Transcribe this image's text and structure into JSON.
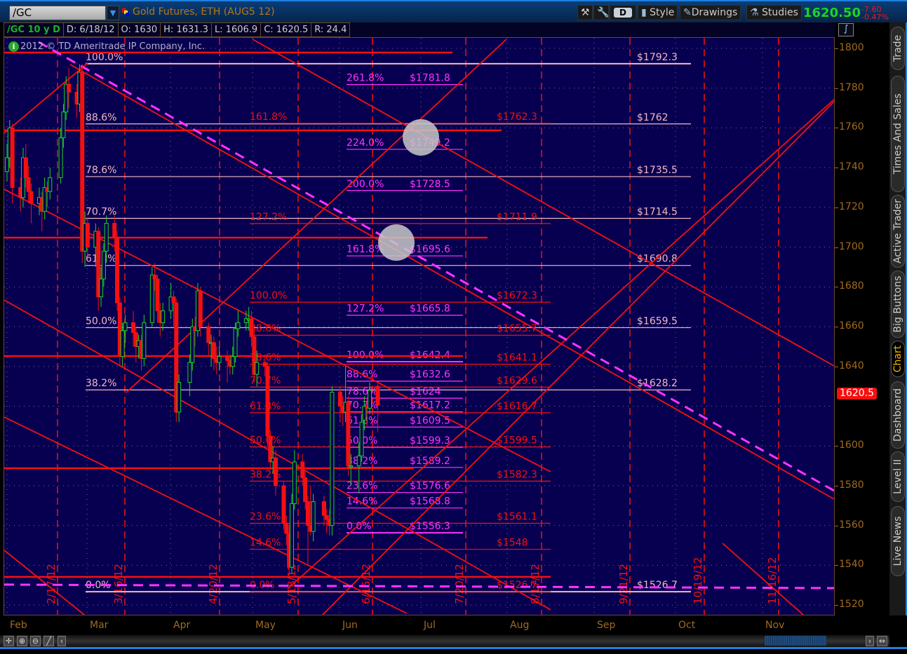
{
  "toolbar": {
    "symbol": "/GC",
    "title": "Gold Futures, ETH (AUG5 12)",
    "aggregation_button": "D",
    "style_label": "Style",
    "drawings_label": "Drawings",
    "studies_label": "Studies",
    "last_price": "1620.50",
    "net_change": "-7.60",
    "pct_change": "-0.47%"
  },
  "infobar": {
    "chart_label": "/GC 10 y D",
    "date": "D: 6/18/12",
    "open": "O: 1630",
    "high": "H: 1631.3",
    "low": "L: 1606.9",
    "close": "C: 1620.5",
    "range": "R: 24.4"
  },
  "copyright": "2012 © TD Ameritrade IP Company, Inc.",
  "side_tabs": [
    {
      "label": "Trade",
      "active": false
    },
    {
      "label": "Times And Sales",
      "active": false
    },
    {
      "label": "Active Trader",
      "active": false
    },
    {
      "label": "Big Buttons",
      "active": false
    },
    {
      "label": "Chart",
      "active": true
    },
    {
      "label": "Dashboard",
      "active": false
    },
    {
      "label": "Level II",
      "active": false
    },
    {
      "label": "Live News",
      "active": false
    }
  ],
  "colors": {
    "up": "#19d61f",
    "down": "#f41010",
    "background": "#070050",
    "fib_a": "#f3b8c4",
    "fib_b": "#f41010",
    "fib_c": "#ff33ff",
    "trendline": "#f41010",
    "dashed_trend": "#ff33ff"
  },
  "chart_data": {
    "type": "candlestick",
    "symbol": "/GC",
    "current_price_badge": "1620.5",
    "y_ticks": [
      "1800",
      "1780",
      "1760",
      "1740",
      "1720",
      "1700",
      "1680",
      "1660",
      "1640",
      "1600",
      "1580",
      "1560",
      "1540",
      "1520"
    ],
    "ylim": [
      1516,
      1808
    ],
    "x_ticks": [
      "Feb",
      "Mar",
      "Apr",
      "May",
      "Jun",
      "Jul",
      "Aug",
      "Sep",
      "Oct",
      "Nov"
    ],
    "time_markers": [
      "2/17/12",
      "3/16/12",
      "4/20/12",
      "5/18/12",
      "6/15/12",
      "7/20/12",
      "8/17/12",
      "9/21/12",
      "10/19/12",
      "11/16/12"
    ],
    "candles": [
      [
        "2/1",
        1738,
        1752,
        1733,
        1745
      ],
      [
        "2/2",
        1745,
        1764,
        1740,
        1760
      ],
      [
        "2/3",
        1760,
        1762,
        1722,
        1730
      ],
      [
        "2/6",
        1730,
        1735,
        1718,
        1725
      ],
      [
        "2/7",
        1725,
        1750,
        1720,
        1745
      ],
      [
        "2/8",
        1745,
        1752,
        1730,
        1735
      ],
      [
        "2/9",
        1735,
        1741,
        1722,
        1728
      ],
      [
        "2/10",
        1728,
        1732,
        1712,
        1722
      ],
      [
        "2/13",
        1722,
        1730,
        1716,
        1725
      ],
      [
        "2/14",
        1725,
        1728,
        1708,
        1718
      ],
      [
        "2/15",
        1718,
        1735,
        1714,
        1730
      ],
      [
        "2/16",
        1730,
        1733,
        1720,
        1728
      ],
      [
        "2/17",
        1728,
        1740,
        1724,
        1735
      ],
      [
        "2/21",
        1735,
        1760,
        1732,
        1755
      ],
      [
        "2/22",
        1755,
        1772,
        1750,
        1768
      ],
      [
        "2/23",
        1768,
        1786,
        1764,
        1782
      ],
      [
        "2/24",
        1782,
        1790,
        1770,
        1778
      ],
      [
        "2/27",
        1778,
        1782,
        1765,
        1772
      ],
      [
        "2/28",
        1772,
        1792,
        1768,
        1788
      ],
      [
        "2/29",
        1788,
        1792,
        1692,
        1698
      ],
      [
        "3/1",
        1698,
        1718,
        1690,
        1712
      ],
      [
        "3/2",
        1712,
        1715,
        1694,
        1700
      ],
      [
        "3/5",
        1700,
        1712,
        1690,
        1708
      ],
      [
        "3/6",
        1708,
        1710,
        1668,
        1675
      ],
      [
        "3/7",
        1675,
        1690,
        1670,
        1684
      ],
      [
        "3/8",
        1684,
        1702,
        1680,
        1698
      ],
      [
        "3/9",
        1698,
        1716,
        1692,
        1712
      ],
      [
        "3/12",
        1712,
        1716,
        1698,
        1705
      ],
      [
        "3/13",
        1705,
        1708,
        1668,
        1672
      ],
      [
        "3/14",
        1672,
        1675,
        1640,
        1645
      ],
      [
        "3/15",
        1645,
        1662,
        1640,
        1658
      ],
      [
        "3/16",
        1658,
        1666,
        1652,
        1662
      ],
      [
        "3/19",
        1662,
        1668,
        1650,
        1657
      ],
      [
        "3/20",
        1657,
        1660,
        1642,
        1650
      ],
      [
        "3/21",
        1650,
        1656,
        1644,
        1653
      ],
      [
        "3/22",
        1653,
        1656,
        1638,
        1644
      ],
      [
        "3/23",
        1644,
        1666,
        1640,
        1662
      ],
      [
        "3/26",
        1662,
        1690,
        1660,
        1686
      ],
      [
        "3/27",
        1686,
        1692,
        1678,
        1684
      ],
      [
        "3/28",
        1684,
        1686,
        1662,
        1668
      ],
      [
        "3/29",
        1668,
        1672,
        1655,
        1662
      ],
      [
        "3/30",
        1662,
        1672,
        1658,
        1668
      ],
      [
        "4/2",
        1668,
        1682,
        1664,
        1675
      ],
      [
        "4/3",
        1675,
        1678,
        1660,
        1672
      ],
      [
        "4/4",
        1672,
        1674,
        1612,
        1617
      ],
      [
        "4/5",
        1617,
        1636,
        1612,
        1632
      ],
      [
        "4/9",
        1632,
        1646,
        1625,
        1642
      ],
      [
        "4/10",
        1642,
        1664,
        1638,
        1660
      ],
      [
        "4/11",
        1660,
        1665,
        1650,
        1658
      ],
      [
        "4/12",
        1658,
        1682,
        1655,
        1678
      ],
      [
        "4/13",
        1678,
        1680,
        1655,
        1660
      ],
      [
        "4/16",
        1660,
        1662,
        1645,
        1652
      ],
      [
        "4/17",
        1652,
        1656,
        1640,
        1652
      ],
      [
        "4/18",
        1652,
        1655,
        1638,
        1644
      ],
      [
        "4/19",
        1644,
        1650,
        1636,
        1642
      ],
      [
        "4/20",
        1642,
        1650,
        1638,
        1645
      ],
      [
        "4/23",
        1645,
        1648,
        1632,
        1643
      ],
      [
        "4/24",
        1643,
        1646,
        1636,
        1640
      ],
      [
        "4/25",
        1640,
        1650,
        1636,
        1645
      ],
      [
        "4/26",
        1645,
        1662,
        1642,
        1659
      ],
      [
        "4/27",
        1659,
        1668,
        1655,
        1662
      ],
      [
        "4/30",
        1662,
        1668,
        1658,
        1664
      ],
      [
        "5/1",
        1664,
        1670,
        1658,
        1664
      ],
      [
        "5/2",
        1664,
        1668,
        1650,
        1655
      ],
      [
        "5/3",
        1655,
        1658,
        1632,
        1636
      ],
      [
        "5/4",
        1636,
        1648,
        1630,
        1642
      ],
      [
        "5/7",
        1642,
        1646,
        1635,
        1640
      ],
      [
        "5/8",
        1640,
        1642,
        1600,
        1605
      ],
      [
        "5/9",
        1605,
        1608,
        1588,
        1592
      ],
      [
        "5/10",
        1592,
        1600,
        1586,
        1594
      ],
      [
        "5/11",
        1594,
        1598,
        1575,
        1580
      ],
      [
        "5/14",
        1580,
        1582,
        1558,
        1561
      ],
      [
        "5/15",
        1561,
        1565,
        1550,
        1556
      ],
      [
        "5/16",
        1556,
        1560,
        1535,
        1539
      ],
      [
        "5/17",
        1539,
        1576,
        1536,
        1571
      ],
      [
        "5/18",
        1571,
        1598,
        1568,
        1592
      ],
      [
        "5/21",
        1592,
        1596,
        1580,
        1584
      ],
      [
        "5/22",
        1584,
        1588,
        1568,
        1572
      ],
      [
        "5/23",
        1572,
        1575,
        1540,
        1560
      ],
      [
        "5/24",
        1560,
        1580,
        1555,
        1557
      ],
      [
        "5/25",
        1557,
        1576,
        1552,
        1572
      ],
      [
        "5/29",
        1572,
        1575,
        1560,
        1565
      ],
      [
        "5/30",
        1565,
        1568,
        1556,
        1563
      ],
      [
        "5/31",
        1563,
        1568,
        1555,
        1560
      ],
      [
        "6/1",
        1560,
        1630,
        1555,
        1627
      ],
      [
        "6/4",
        1627,
        1630,
        1612,
        1620
      ],
      [
        "6/5",
        1620,
        1625,
        1610,
        1617
      ],
      [
        "6/6",
        1617,
        1640,
        1612,
        1622
      ],
      [
        "6/7",
        1622,
        1625,
        1585,
        1590
      ],
      [
        "6/8",
        1590,
        1596,
        1580,
        1590
      ],
      [
        "6/11",
        1590,
        1602,
        1576,
        1595
      ],
      [
        "6/12",
        1595,
        1616,
        1592,
        1612
      ],
      [
        "6/13",
        1613,
        1625,
        1608,
        1620
      ],
      [
        "6/14",
        1620,
        1624,
        1610,
        1619
      ],
      [
        "6/15",
        1619,
        1632,
        1616,
        1628
      ],
      [
        "6/18",
        1630,
        1631.3,
        1606.9,
        1620.5
      ]
    ],
    "fib_sets": [
      {
        "name": "fib-a",
        "levels": [
          {
            "pct": "100.0%",
            "price": 1792.3,
            "label": "$1792.3"
          },
          {
            "pct": "88.6%",
            "price": 1762,
            "label": "$1762"
          },
          {
            "pct": "78.6%",
            "price": 1735.5,
            "label": "$1735.5"
          },
          {
            "pct": "70.7%",
            "price": 1714.5,
            "label": "$1714.5"
          },
          {
            "pct": "61.8%",
            "price": 1690.8,
            "label": "$1690.8"
          },
          {
            "pct": "50.0%",
            "price": 1659.5,
            "label": "$1659.5"
          },
          {
            "pct": "38.2%",
            "price": 1628.2,
            "label": "$1628.2"
          },
          {
            "pct": "0.0%",
            "price": 1526.7,
            "label": "$1526.7"
          }
        ]
      },
      {
        "name": "fib-b",
        "levels": [
          {
            "pct": "161.8%",
            "price": 1762.3,
            "label": "$1762.3"
          },
          {
            "pct": "127.2%",
            "price": 1711.9,
            "label": "$1711.9"
          },
          {
            "pct": "100.0%",
            "price": 1672.3,
            "label": "$1672.3"
          },
          {
            "pct": "88.6%",
            "price": 1655.7,
            "label": "$1655.7"
          },
          {
            "pct": "78.6%",
            "price": 1641.1,
            "label": "$1641.1"
          },
          {
            "pct": "70.7%",
            "price": 1629.6,
            "label": "$1629.6"
          },
          {
            "pct": "61.8%",
            "price": 1616.7,
            "label": "$1616.7"
          },
          {
            "pct": "50.0%",
            "price": 1599.5,
            "label": "$1599.5"
          },
          {
            "pct": "38.2%",
            "price": 1582.3,
            "label": "$1582.3"
          },
          {
            "pct": "23.6%",
            "price": 1561.1,
            "label": "$1561.1"
          },
          {
            "pct": "14.6%",
            "price": 1548,
            "label": "$1548"
          },
          {
            "pct": "0.0%",
            "price": 1526.7,
            "label": "$1526.7"
          }
        ]
      },
      {
        "name": "fib-c",
        "levels": [
          {
            "pct": "261.8%",
            "price": 1781.8,
            "label": "$1781.8"
          },
          {
            "pct": "224.0%",
            "price": 1749.2,
            "label": "$1749.2"
          },
          {
            "pct": "200.0%",
            "price": 1728.5,
            "label": "$1728.5"
          },
          {
            "pct": "161.8%",
            "price": 1695.6,
            "label": "$1695.6"
          },
          {
            "pct": "127.2%",
            "price": 1665.8,
            "label": "$1665.8"
          },
          {
            "pct": "100.0%",
            "price": 1642.4,
            "label": "$1642.4"
          },
          {
            "pct": "88.6%",
            "price": 1632.6,
            "label": "$1632.6"
          },
          {
            "pct": "78.6%",
            "price": 1624,
            "label": "$1624"
          },
          {
            "pct": "70.7%",
            "price": 1617.2,
            "label": "$1617.2"
          },
          {
            "pct": "61.8%",
            "price": 1609.5,
            "label": "$1609.5"
          },
          {
            "pct": "50.0%",
            "price": 1599.3,
            "label": "$1599.3"
          },
          {
            "pct": "38.2%",
            "price": 1589.2,
            "label": "$1589.2"
          },
          {
            "pct": "23.6%",
            "price": 1576.6,
            "label": "$1576.6"
          },
          {
            "pct": "14.6%",
            "price": 1568.8,
            "label": "$1568.8"
          },
          {
            "pct": "0.0%",
            "price": 1556.3,
            "label": "$1556.3"
          }
        ]
      }
    ]
  }
}
